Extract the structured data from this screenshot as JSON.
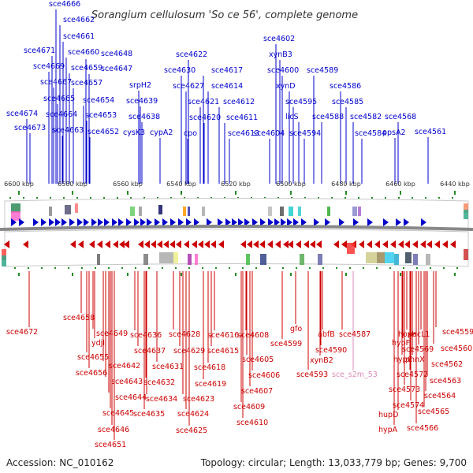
{
  "title": "Sorangium cellulosum 'So ce 56', complete genome",
  "footer": {
    "accession_label": "Accession:",
    "accession": "NC_010162",
    "summary": "Topology: circular; Length: 13,033,779 bp; Genes: 9,700"
  },
  "colors": {
    "forward": "#0000cc",
    "reverse": "#cc0000",
    "rna": "#e08ab8",
    "tick": "#228b22"
  },
  "ticks": [
    "6600 kbp",
    "6580 kbp",
    "6560 kbp",
    "6540 kbp",
    "6520 kbp",
    "6500 kbp",
    "6480 kbp",
    "6460 kbp",
    "6440 kbp"
  ],
  "top_genes": [
    "sce4666",
    "sce4662",
    "sce4661",
    "sce4671",
    "sce4660",
    "sce4648",
    "sce4669",
    "sce4659",
    "sce4647",
    "sce4667",
    "sce4657",
    "sce4665",
    "sce4654",
    "sce4674",
    "sce4664",
    "sce4653",
    "sce4673",
    "sce4663",
    "sce4652",
    "srpH2",
    "sce4639",
    "sce4638",
    "cysK3",
    "cypA2",
    "sce4622",
    "sce4630",
    "sce4617",
    "sce4627",
    "sce4614",
    "sce4621",
    "sce4612",
    "sce4620",
    "sce4611",
    "cpo",
    "sce4613",
    "sce4602",
    "xynB3",
    "sce4600",
    "xynD",
    "sce4595",
    "licS",
    "sce4604",
    "sce4594",
    "sce4589",
    "sce4588",
    "sce4586",
    "sce4585",
    "sce4582",
    "sce4584",
    "sce4568",
    "ppsA2",
    "sce4561"
  ],
  "bottom_genes": [
    "sce4672",
    "sce4658",
    "sce4655",
    "sce4656",
    "sce4649",
    "ydjI",
    "sce4642",
    "sce4643",
    "sce4644",
    "sce4645",
    "sce4646",
    "sce4651",
    "sce4636",
    "sce4637",
    "sce4631",
    "sce4632",
    "sce4634",
    "sce4635",
    "sce4628",
    "sce4629",
    "sce4623",
    "sce4624",
    "sce4625",
    "sce4616",
    "sce4615",
    "sce4618",
    "sce4619",
    "sce4608",
    "sce4605",
    "sce4606",
    "sce4607",
    "sce4609",
    "sce4610",
    "gfo",
    "sce4599",
    "abfB",
    "sce4590",
    "xynB2",
    "sce4593",
    "sce4587",
    "hoxH",
    "hypF",
    "hypC",
    "phnX",
    "sce4572",
    "sce4573",
    "sce4574",
    "hupD",
    "hypA",
    "pacL1",
    "sce4569",
    "sce4559",
    "sce4560",
    "sce4562",
    "sce4563",
    "sce4564",
    "sce4565",
    "sce4566"
  ],
  "rna_genes": [
    "sce_s2m_53"
  ]
}
